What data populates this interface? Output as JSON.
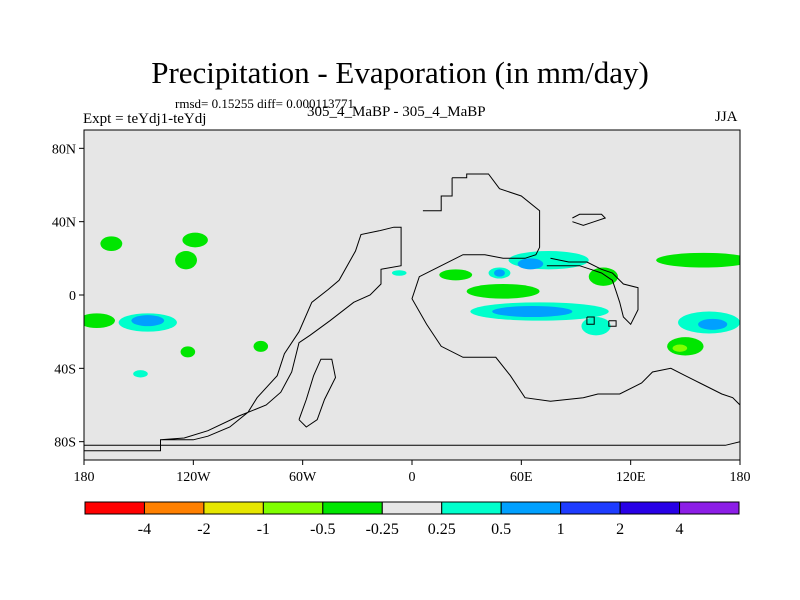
{
  "header": {
    "title": "Precipitation - Evaporation (in mm/day)",
    "stats": "rmsd= 0.15255 diff= 0.000113771",
    "expt": "Expt = teYdj1-teYdj",
    "center": "305_4_MaBP - 305_4_MaBP",
    "season": "JJA"
  },
  "chart_data": {
    "type": "heatmap",
    "title": "Precipitation - Evaporation (in mm/day)",
    "xlabel": "",
    "ylabel": "",
    "xlim": [
      -180,
      180
    ],
    "ylim": [
      -90,
      90
    ],
    "x_ticks": [
      {
        "value": -180,
        "label": "180"
      },
      {
        "value": -120,
        "label": "120W"
      },
      {
        "value": -60,
        "label": "60W"
      },
      {
        "value": 0,
        "label": "0"
      },
      {
        "value": 60,
        "label": "60E"
      },
      {
        "value": 120,
        "label": "120E"
      },
      {
        "value": 180,
        "label": "180"
      }
    ],
    "y_ticks": [
      {
        "value": 80,
        "label": "80N"
      },
      {
        "value": 40,
        "label": "40N"
      },
      {
        "value": 0,
        "label": "0"
      },
      {
        "value": -40,
        "label": "40S"
      },
      {
        "value": -80,
        "label": "80S"
      }
    ],
    "background_color": "#e6e6e6",
    "colorbar": {
      "colors": [
        "#ff0000",
        "#ff8000",
        "#e6e600",
        "#80ff00",
        "#00e600",
        "#e6e6e6",
        "#00ffcc",
        "#00a0ff",
        "#1e3cff",
        "#2800e6",
        "#8c1ee6"
      ],
      "tick_labels": [
        "-4",
        "-2",
        "-1",
        "-0.5",
        "-0.25",
        "0.25",
        "0.5",
        "1",
        "2",
        "4"
      ]
    },
    "features": [
      {
        "name": "n-pacific-west",
        "level": -0.25,
        "lon": -165,
        "lat": 28,
        "rlon": 6,
        "rlat": 4
      },
      {
        "name": "n-pacific-east",
        "level": -0.25,
        "lon": -119,
        "lat": 30,
        "rlon": 7,
        "rlat": 4
      },
      {
        "name": "n-pacific-mid",
        "level": -0.25,
        "lon": -124,
        "lat": 19,
        "rlon": 6,
        "rlat": 5
      },
      {
        "name": "trop-pacific-west",
        "level": -0.25,
        "lon": -173,
        "lat": -14,
        "rlon": 10,
        "rlat": 4
      },
      {
        "name": "s-pacific-cyan",
        "level": 0.25,
        "lon": -145,
        "lat": -15,
        "rlon": 16,
        "rlat": 5
      },
      {
        "name": "s-pacific-core",
        "level": 0.5,
        "lon": -145,
        "lat": -14,
        "rlon": 9,
        "rlat": 3
      },
      {
        "name": "s-pacific-green",
        "level": -0.25,
        "lon": -123,
        "lat": -31,
        "rlon": 4,
        "rlat": 3
      },
      {
        "name": "s-pacific-east",
        "level": -0.25,
        "lon": -83,
        "lat": -28,
        "rlon": 4,
        "rlat": 3
      },
      {
        "name": "s-pacific-blob",
        "level": 0.25,
        "lon": -149,
        "lat": -43,
        "rlon": 4,
        "rlat": 2
      },
      {
        "name": "e-pacific-cyan",
        "level": 0.25,
        "lon": -7,
        "lat": 12,
        "rlon": 4,
        "rlat": 1.5
      },
      {
        "name": "n-africa-green",
        "level": -0.25,
        "lon": 24,
        "lat": 11,
        "rlon": 9,
        "rlat": 3
      },
      {
        "name": "africa-band",
        "level": -0.25,
        "lon": 50,
        "lat": 2,
        "rlon": 20,
        "rlat": 4
      },
      {
        "name": "indian-ocean-cyan",
        "level": 0.25,
        "lon": 70,
        "lat": -9,
        "rlon": 38,
        "rlat": 5
      },
      {
        "name": "indian-ocean-core",
        "level": 0.5,
        "lon": 66,
        "lat": -9,
        "rlon": 22,
        "rlat": 3
      },
      {
        "name": "tibet-cyan",
        "level": 0.25,
        "lon": 75,
        "lat": 19,
        "rlon": 22,
        "rlat": 5
      },
      {
        "name": "tibet-core",
        "level": 0.5,
        "lon": 65,
        "lat": 17,
        "rlon": 7,
        "rlat": 3
      },
      {
        "name": "arabia-cyan",
        "level": 0.25,
        "lon": 48,
        "lat": 12,
        "rlon": 6,
        "rlat": 3
      },
      {
        "name": "arabia-core",
        "level": 0.5,
        "lon": 48,
        "lat": 12,
        "rlon": 3,
        "rlat": 2
      },
      {
        "name": "se-asia-green",
        "level": -0.25,
        "lon": 105,
        "lat": 10,
        "rlon": 8,
        "rlat": 5
      },
      {
        "name": "w-pacific-green",
        "level": -0.25,
        "lon": 160,
        "lat": 19,
        "rlon": 26,
        "rlat": 4
      },
      {
        "name": "w-pacific-cyan",
        "level": 0.25,
        "lon": 101,
        "lat": -17,
        "rlon": 8,
        "rlat": 5
      },
      {
        "name": "s-indian-cyan",
        "level": 0.25,
        "lon": 163,
        "lat": -15,
        "rlon": 17,
        "rlat": 6
      },
      {
        "name": "s-indian-core",
        "level": 0.5,
        "lon": 165,
        "lat": -16,
        "rlon": 8,
        "rlat": 3
      },
      {
        "name": "australia-green",
        "level": -0.25,
        "lon": 150,
        "lat": -28,
        "rlon": 10,
        "rlat": 5
      },
      {
        "name": "australia-core",
        "level": -0.5,
        "lon": 147,
        "lat": -29,
        "rlon": 4,
        "rlat": 2
      }
    ]
  }
}
